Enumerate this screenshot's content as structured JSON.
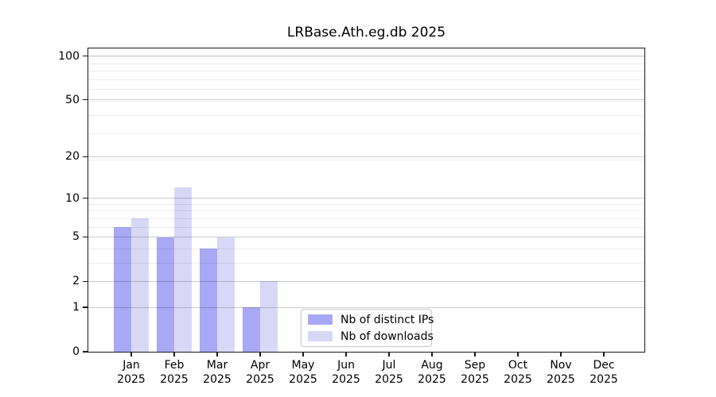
{
  "title": "LRBase.Ath.eg.db 2025",
  "chart_data": {
    "type": "bar",
    "title": "LRBase.Ath.eg.db 2025",
    "categories": [
      "Jan",
      "Feb",
      "Mar",
      "Apr",
      "May",
      "Jun",
      "Jul",
      "Aug",
      "Sep",
      "Oct",
      "Nov",
      "Dec"
    ],
    "x_year_label": "2025",
    "series": [
      {
        "name": "Nb of distinct IPs",
        "color": "#a8a8f4",
        "values": [
          6,
          5,
          4,
          1,
          0,
          0,
          0,
          0,
          0,
          0,
          0,
          0
        ]
      },
      {
        "name": "Nb of downloads",
        "color": "#d8d8f6",
        "values": [
          7,
          12,
          5,
          2,
          0,
          0,
          0,
          0,
          0,
          0,
          0,
          0
        ]
      }
    ],
    "y_axis": {
      "scale": "log10(value+1)",
      "major_ticks": [
        0,
        1,
        2,
        5,
        10,
        20,
        50,
        100
      ],
      "minor_ticks": [
        3,
        4,
        6,
        7,
        8,
        9,
        19,
        29,
        39,
        49,
        59,
        69,
        79,
        89,
        99
      ],
      "top_value": 113
    },
    "grid": "horizontal-major-and-minor",
    "legend_position": "lower-center-inside"
  }
}
